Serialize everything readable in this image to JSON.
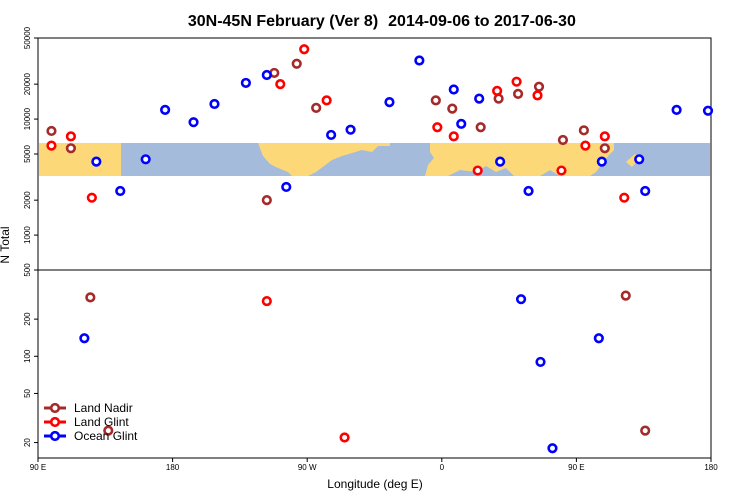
{
  "chart_data": {
    "type": "scatter",
    "title_left": "30N-45N February (Ver 8)",
    "title_right": "2014-09-06 to 2017-06-30",
    "xlabel": "Longitude (deg E)",
    "ylabel": "N Total",
    "x_ticks": [
      "90 E",
      "180",
      "90 W",
      "0",
      "90 E",
      "180"
    ],
    "xlim": [
      90,
      540
    ],
    "x_tick_values": [
      90,
      180,
      270,
      360,
      450,
      540
    ],
    "upper_panel": {
      "scale": "log",
      "ylim": [
        500,
        50000
      ],
      "y_ticks": [
        "1000",
        "2000",
        "5000",
        "10000",
        "20000",
        "50000"
      ],
      "y_tick_values": [
        1000,
        2000,
        5000,
        10000,
        20000,
        50000
      ]
    },
    "lower_panel": {
      "scale": "log",
      "ylim": [
        15,
        500
      ],
      "y_ticks": [
        "20",
        "50",
        "100",
        "200",
        "500"
      ],
      "y_tick_values": [
        20,
        50,
        100,
        200,
        500
      ]
    },
    "map_band": {
      "ocean_color": "#a4bbdc",
      "land_color": "#fdd878"
    },
    "series": [
      {
        "name": "Land Nadir",
        "color": "#a52a2a",
        "upper": [
          [
            99,
            7900
          ],
          [
            112,
            5600
          ],
          [
            248,
            25000
          ],
          [
            263,
            30000
          ],
          [
            276,
            12500
          ],
          [
            356,
            14500
          ],
          [
            367,
            12300
          ],
          [
            386,
            8500
          ],
          [
            398,
            15000
          ],
          [
            411,
            16500
          ],
          [
            425,
            19000
          ],
          [
            441,
            6600
          ],
          [
            455,
            8000
          ],
          [
            469,
            5600
          ],
          [
            243,
            2000
          ]
        ],
        "lower": [
          [
            125,
            300
          ],
          [
            137,
            25
          ],
          [
            483,
            310
          ],
          [
            496,
            25
          ]
        ]
      },
      {
        "name": "Land Glint",
        "color": "#ff0000",
        "upper": [
          [
            99,
            5900
          ],
          [
            112,
            7100
          ],
          [
            126,
            2100
          ],
          [
            252,
            20000
          ],
          [
            268,
            40000
          ],
          [
            283,
            14500
          ],
          [
            357,
            8500
          ],
          [
            368,
            7100
          ],
          [
            384,
            3600
          ],
          [
            397,
            17500
          ],
          [
            410,
            21000
          ],
          [
            424,
            16000
          ],
          [
            440,
            3600
          ],
          [
            456,
            5900
          ],
          [
            469,
            7100
          ],
          [
            482,
            2100
          ]
        ],
        "lower": [
          [
            243,
            280
          ],
          [
            295,
            22
          ]
        ]
      },
      {
        "name": "Ocean Glint",
        "color": "#0000ff",
        "upper": [
          [
            129,
            4300
          ],
          [
            145,
            2400
          ],
          [
            162,
            4500
          ],
          [
            175,
            12000
          ],
          [
            194,
            9400
          ],
          [
            208,
            13500
          ],
          [
            229,
            20500
          ],
          [
            243,
            24000
          ],
          [
            256,
            2600
          ],
          [
            286,
            7300
          ],
          [
            299,
            8100
          ],
          [
            325,
            14000
          ],
          [
            345,
            32000
          ],
          [
            368,
            18000
          ],
          [
            373,
            9100
          ],
          [
            385,
            15000
          ],
          [
            399,
            4300
          ],
          [
            418,
            2400
          ],
          [
            467,
            4300
          ],
          [
            492,
            4500
          ],
          [
            496,
            2400
          ],
          [
            517,
            12000
          ],
          [
            538,
            11800
          ]
        ],
        "lower": [
          [
            121,
            140
          ],
          [
            413,
            290
          ],
          [
            426,
            90
          ],
          [
            434,
            18
          ],
          [
            465,
            140
          ]
        ]
      }
    ]
  }
}
